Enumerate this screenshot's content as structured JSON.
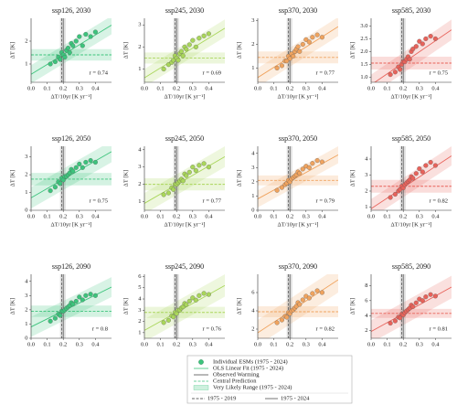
{
  "chart_data": [
    {
      "type": "scatter",
      "title": "ssp126, 2030",
      "xlabel": "ΔT/10yr  [K yr⁻¹]",
      "ylabel": "ΔT [K]",
      "annotation": "r = 0.74",
      "color": "#3cc47c",
      "x": [
        0.12,
        0.15,
        0.17,
        0.18,
        0.19,
        0.2,
        0.21,
        0.22,
        0.23,
        0.24,
        0.25,
        0.26,
        0.28,
        0.3,
        0.32,
        0.34,
        0.37,
        0.4
      ],
      "y": [
        1.0,
        1.1,
        1.3,
        1.2,
        1.5,
        1.4,
        1.3,
        1.6,
        1.7,
        1.5,
        1.9,
        1.8,
        2.0,
        2.2,
        1.8,
        2.3,
        2.2,
        2.4
      ],
      "fit": [
        0.55,
        2.7
      ],
      "fit_lower": [
        0.15,
        2.3
      ],
      "fit_upper": [
        0.95,
        3.1
      ],
      "central": 1.4,
      "range": [
        1.15,
        1.65
      ],
      "observed": [
        0.19,
        0.2
      ],
      "observed_range": [
        0.18,
        0.215
      ],
      "xlim": [
        0,
        0.5
      ],
      "xticks": [
        {
          "value": 0,
          "label": "0.0"
        },
        0.1,
        0.2,
        0.3,
        0.4
      ],
      "ylim": [
        0.2,
        3
      ],
      "yticks": [
        1,
        2
      ]
    },
    {
      "type": "scatter",
      "title": "ssp245, 2030",
      "xlabel": "ΔT/10yr  [K yr⁻¹]",
      "ylabel": "ΔT [K]",
      "annotation": "r = 0.69",
      "color": "#a9d65a",
      "x": [
        0.12,
        0.15,
        0.17,
        0.18,
        0.19,
        0.2,
        0.21,
        0.22,
        0.23,
        0.24,
        0.25,
        0.26,
        0.28,
        0.3,
        0.32,
        0.34,
        0.37,
        0.4
      ],
      "y": [
        1.0,
        1.2,
        1.3,
        1.4,
        1.6,
        1.5,
        1.4,
        1.7,
        1.8,
        1.6,
        2.0,
        1.9,
        2.1,
        2.3,
        2.0,
        2.4,
        2.5,
        2.6
      ],
      "fit": [
        0.6,
        2.85
      ],
      "fit_lower": [
        0.2,
        2.45
      ],
      "fit_upper": [
        1.0,
        3.25
      ],
      "central": 1.5,
      "range": [
        1.25,
        1.75
      ],
      "observed": [
        0.19,
        0.2
      ],
      "observed_range": [
        0.18,
        0.215
      ],
      "xlim": [
        0,
        0.5
      ],
      "xticks": [
        {
          "value": 0,
          "label": "0.0"
        },
        0.1,
        0.2,
        0.3,
        0.4
      ],
      "ylim": [
        0.4,
        3.3
      ],
      "yticks": [
        1,
        2,
        3
      ]
    },
    {
      "type": "scatter",
      "title": "ssp370, 2030",
      "xlabel": "ΔT/10yr  [K yr⁻¹]",
      "ylabel": "ΔT [K]",
      "annotation": "r = 0.77",
      "color": "#f0a35e",
      "x": [
        0.12,
        0.15,
        0.17,
        0.18,
        0.19,
        0.2,
        0.21,
        0.22,
        0.23,
        0.24,
        0.25,
        0.26,
        0.28,
        0.3,
        0.32,
        0.34,
        0.37,
        0.4
      ],
      "y": [
        1.0,
        1.1,
        1.3,
        1.3,
        1.5,
        1.4,
        1.6,
        1.5,
        1.7,
        1.8,
        1.9,
        1.7,
        2.0,
        2.2,
        2.1,
        2.3,
        2.4,
        2.3
      ],
      "fit": [
        0.6,
        2.75
      ],
      "fit_lower": [
        0.2,
        2.35
      ],
      "fit_upper": [
        1.0,
        3.15
      ],
      "central": 1.45,
      "range": [
        1.2,
        1.7
      ],
      "observed": [
        0.19,
        0.2
      ],
      "observed_range": [
        0.18,
        0.215
      ],
      "xlim": [
        0,
        0.5
      ],
      "xticks": [
        {
          "value": 0,
          "label": "0.0"
        },
        0.1,
        0.2,
        0.3,
        0.4
      ],
      "ylim": [
        0.4,
        3.1
      ],
      "yticks": [
        1,
        2,
        3
      ]
    },
    {
      "type": "scatter",
      "title": "ssp585, 2030",
      "xlabel": "ΔT/10yr  [K yr⁻¹]",
      "ylabel": "ΔT [K]",
      "annotation": "r = 0.75",
      "color": "#e8625a",
      "x": [
        0.12,
        0.15,
        0.17,
        0.18,
        0.19,
        0.2,
        0.21,
        0.22,
        0.23,
        0.24,
        0.25,
        0.26,
        0.28,
        0.3,
        0.32,
        0.34,
        0.37,
        0.4
      ],
      "y": [
        1.1,
        1.2,
        1.4,
        1.3,
        1.5,
        1.6,
        1.6,
        1.7,
        1.8,
        1.7,
        2.0,
        2.1,
        2.2,
        2.4,
        2.3,
        2.5,
        2.6,
        2.5
      ],
      "fit": [
        0.7,
        2.85
      ],
      "fit_lower": [
        0.3,
        2.45
      ],
      "fit_upper": [
        1.1,
        3.25
      ],
      "central": 1.55,
      "range": [
        1.3,
        1.8
      ],
      "observed": [
        0.19,
        0.2
      ],
      "observed_range": [
        0.18,
        0.215
      ],
      "xlim": [
        0,
        0.5
      ],
      "xticks": [
        {
          "value": 0,
          "label": "0.0"
        },
        0.1,
        0.2,
        0.3,
        0.4
      ],
      "ylim": [
        0.8,
        3.3
      ],
      "yticks": [
        {
          "value": 1,
          "label": "1.0"
        },
        1.5,
        {
          "value": 2,
          "label": "2.0"
        },
        2.5,
        {
          "value": 3,
          "label": "3.0"
        }
      ]
    },
    {
      "type": "scatter",
      "title": "ssp126, 2050",
      "xlabel": "ΔT/10yr  [K yr⁻¹]",
      "ylabel": "ΔT [K]",
      "annotation": "r = 0.75",
      "color": "#3cc47c",
      "x": [
        0.12,
        0.15,
        0.17,
        0.18,
        0.19,
        0.2,
        0.21,
        0.22,
        0.23,
        0.24,
        0.25,
        0.26,
        0.28,
        0.3,
        0.32,
        0.34,
        0.37,
        0.4
      ],
      "y": [
        1.1,
        1.3,
        1.6,
        1.5,
        1.8,
        1.7,
        1.9,
        1.9,
        2.0,
        2.1,
        2.3,
        2.2,
        2.4,
        2.6,
        2.4,
        2.7,
        2.8,
        2.7
      ],
      "fit": [
        0.7,
        3.3
      ],
      "fit_lower": [
        0.1,
        2.7
      ],
      "fit_upper": [
        1.3,
        3.9
      ],
      "central": 1.75,
      "range": [
        1.4,
        2.1
      ],
      "observed": [
        0.19,
        0.2
      ],
      "observed_range": [
        0.18,
        0.215
      ],
      "xlim": [
        0,
        0.5
      ],
      "xticks": [
        {
          "value": 0,
          "label": "0.0"
        },
        0.1,
        0.2,
        0.3,
        0.4
      ],
      "ylim": [
        0,
        3.6
      ],
      "yticks": [
        0,
        1,
        2,
        3
      ]
    },
    {
      "type": "scatter",
      "title": "ssp245, 2050",
      "xlabel": "ΔT/10yr  [K yr⁻¹]",
      "ylabel": "ΔT [K]",
      "annotation": "r = 0.77",
      "color": "#a9d65a",
      "x": [
        0.12,
        0.15,
        0.17,
        0.18,
        0.19,
        0.2,
        0.21,
        0.22,
        0.23,
        0.24,
        0.25,
        0.26,
        0.28,
        0.3,
        0.32,
        0.34,
        0.37,
        0.4
      ],
      "y": [
        1.4,
        1.5,
        1.8,
        1.7,
        2.0,
        2.0,
        2.1,
        2.2,
        2.3,
        2.2,
        2.6,
        2.5,
        2.7,
        3.0,
        2.8,
        3.1,
        3.2,
        3.0
      ],
      "fit": [
        0.9,
        3.6
      ],
      "fit_lower": [
        0.3,
        3.0
      ],
      "fit_upper": [
        1.5,
        4.2
      ],
      "central": 2.0,
      "range": [
        1.65,
        2.35
      ],
      "observed": [
        0.19,
        0.2
      ],
      "observed_range": [
        0.18,
        0.215
      ],
      "xlim": [
        0,
        0.5
      ],
      "xticks": [
        {
          "value": 0,
          "label": "0.0"
        },
        0.1,
        0.2,
        0.3,
        0.4
      ],
      "ylim": [
        0.5,
        4.2
      ],
      "yticks": [
        1,
        2,
        3,
        4
      ]
    },
    {
      "type": "scatter",
      "title": "ssp370, 2050",
      "xlabel": "ΔT/10yr  [K yr⁻¹]",
      "ylabel": "ΔT [K]",
      "annotation": "r = 0.79",
      "color": "#f0a35e",
      "x": [
        0.12,
        0.15,
        0.17,
        0.18,
        0.19,
        0.2,
        0.21,
        0.22,
        0.23,
        0.24,
        0.25,
        0.26,
        0.28,
        0.3,
        0.32,
        0.34,
        0.37,
        0.4
      ],
      "y": [
        1.4,
        1.6,
        1.8,
        1.9,
        2.1,
        2.0,
        2.2,
        2.3,
        2.4,
        2.5,
        2.7,
        2.6,
        2.9,
        3.1,
        3.0,
        3.3,
        3.5,
        3.4
      ],
      "fit": [
        0.8,
        3.9
      ],
      "fit_lower": [
        0.2,
        3.3
      ],
      "fit_upper": [
        1.4,
        4.5
      ],
      "central": 2.1,
      "range": [
        1.75,
        2.45
      ],
      "observed": [
        0.19,
        0.2
      ],
      "observed_range": [
        0.18,
        0.215
      ],
      "xlim": [
        0,
        0.5
      ],
      "xticks": [
        {
          "value": 0,
          "label": "0.0"
        },
        0.1,
        0.2,
        0.3,
        0.4
      ],
      "ylim": [
        0,
        4.5
      ],
      "yticks": [
        0,
        1,
        2,
        3,
        4
      ]
    },
    {
      "type": "scatter",
      "title": "ssp585, 2050",
      "xlabel": "ΔT/10yr  [K yr⁻¹]",
      "ylabel": "ΔT [K]",
      "annotation": "r = 0.82",
      "color": "#e8625a",
      "x": [
        0.12,
        0.15,
        0.17,
        0.18,
        0.19,
        0.2,
        0.21,
        0.22,
        0.23,
        0.24,
        0.25,
        0.26,
        0.28,
        0.3,
        0.32,
        0.34,
        0.37,
        0.4
      ],
      "y": [
        1.6,
        1.8,
        2.0,
        2.1,
        2.3,
        2.2,
        2.4,
        2.5,
        2.6,
        2.7,
        2.9,
        2.8,
        3.1,
        3.4,
        3.2,
        3.6,
        3.8,
        3.6
      ],
      "fit": [
        0.9,
        4.2
      ],
      "fit_lower": [
        0.3,
        3.6
      ],
      "fit_upper": [
        1.5,
        4.8
      ],
      "central": 2.3,
      "range": [
        1.9,
        2.7
      ],
      "observed": [
        0.19,
        0.2
      ],
      "observed_range": [
        0.18,
        0.215
      ],
      "xlim": [
        0,
        0.5
      ],
      "xticks": [
        {
          "value": 0,
          "label": "0.0"
        },
        0.1,
        0.2,
        0.3,
        0.4
      ],
      "ylim": [
        0.8,
        4.8
      ],
      "yticks": [
        1,
        2,
        3,
        4
      ]
    },
    {
      "type": "scatter",
      "title": "ssp126, 2090",
      "ylabel": "ΔT [K]",
      "annotation": "r = 0.8",
      "color": "#3cc47c",
      "x": [
        0.12,
        0.15,
        0.17,
        0.18,
        0.19,
        0.2,
        0.21,
        0.22,
        0.23,
        0.24,
        0.25,
        0.26,
        0.28,
        0.3,
        0.32,
        0.34,
        0.37,
        0.4
      ],
      "y": [
        1.2,
        1.4,
        1.7,
        1.6,
        1.9,
        1.9,
        2.0,
        2.1,
        2.2,
        2.3,
        2.5,
        2.4,
        2.6,
        2.9,
        2.7,
        3.0,
        3.1,
        3.0
      ],
      "fit": [
        0.8,
        3.6
      ],
      "fit_lower": [
        0.1,
        2.9
      ],
      "fit_upper": [
        1.5,
        4.3
      ],
      "central": 1.9,
      "range": [
        1.5,
        2.3
      ],
      "observed": [
        0.19,
        0.2
      ],
      "observed_range": [
        0.18,
        0.215
      ],
      "xlim": [
        0,
        0.5
      ],
      "xticks": [
        {
          "value": 0,
          "label": "0.0"
        },
        0.1,
        0.2,
        0.3,
        0.4
      ],
      "ylim": [
        0,
        4.5
      ],
      "yticks": [
        0,
        1,
        2,
        3,
        4
      ]
    },
    {
      "type": "scatter",
      "title": "ssp245, 2090",
      "ylabel": "ΔT [K]",
      "annotation": "r = 0.76",
      "color": "#a9d65a",
      "x": [
        0.12,
        0.15,
        0.17,
        0.18,
        0.19,
        0.2,
        0.21,
        0.22,
        0.23,
        0.24,
        0.25,
        0.26,
        0.28,
        0.3,
        0.32,
        0.34,
        0.37,
        0.4
      ],
      "y": [
        1.9,
        2.1,
        2.5,
        2.4,
        2.8,
        2.7,
        3.0,
        3.0,
        3.2,
        3.3,
        3.6,
        3.5,
        3.8,
        4.1,
        3.9,
        4.3,
        4.5,
        4.4
      ],
      "fit": [
        1.2,
        5.2
      ],
      "fit_lower": [
        0.2,
        4.2
      ],
      "fit_upper": [
        2.2,
        6.2
      ],
      "central": 2.8,
      "range": [
        2.3,
        3.3
      ],
      "observed": [
        0.19,
        0.2
      ],
      "observed_range": [
        0.18,
        0.215
      ],
      "xlim": [
        0,
        0.5
      ],
      "xticks": [
        {
          "value": 0,
          "label": "0.0"
        },
        0.1,
        0.2,
        0.3,
        0.4
      ],
      "ylim": [
        0.5,
        6.2
      ],
      "yticks": [
        1,
        2,
        3,
        4,
        5,
        6
      ]
    },
    {
      "type": "scatter",
      "title": "ssp370, 2090",
      "ylabel": "ΔT [K]",
      "annotation": "r = 0.82",
      "color": "#f0a35e",
      "x": [
        0.12,
        0.15,
        0.17,
        0.18,
        0.19,
        0.2,
        0.21,
        0.22,
        0.23,
        0.24,
        0.25,
        0.26,
        0.28,
        0.3,
        0.32,
        0.34,
        0.37,
        0.4
      ],
      "y": [
        2.7,
        3.0,
        3.4,
        3.3,
        3.8,
        3.7,
        4.0,
        4.1,
        4.3,
        4.5,
        4.9,
        4.7,
        5.2,
        5.6,
        5.4,
        5.9,
        6.2,
        6.0
      ],
      "fit": [
        1.6,
        7.4
      ],
      "fit_lower": [
        0.2,
        6.0
      ],
      "fit_upper": [
        3.0,
        8.8
      ],
      "central": 3.9,
      "range": [
        3.3,
        4.5
      ],
      "observed": [
        0.19,
        0.2
      ],
      "observed_range": [
        0.18,
        0.215
      ],
      "xlim": [
        0,
        0.5
      ],
      "xticks": [
        {
          "value": 0,
          "label": "0.0"
        },
        0.1,
        0.2,
        0.3,
        0.4
      ],
      "ylim": [
        1,
        8
      ],
      "yticks": [
        2,
        4,
        6
      ]
    },
    {
      "type": "scatter",
      "title": "ssp585, 2090",
      "ylabel": "ΔT [K]",
      "annotation": "r = 0.81",
      "color": "#e8625a",
      "x": [
        0.12,
        0.15,
        0.17,
        0.18,
        0.19,
        0.2,
        0.21,
        0.22,
        0.23,
        0.24,
        0.25,
        0.26,
        0.28,
        0.3,
        0.32,
        0.34,
        0.37,
        0.4
      ],
      "y": [
        3.0,
        3.3,
        3.8,
        3.7,
        4.2,
        4.1,
        4.4,
        4.6,
        4.8,
        5.0,
        5.4,
        5.2,
        5.7,
        6.2,
        6.0,
        6.5,
        6.8,
        6.6
      ],
      "fit": [
        1.9,
        7.8
      ],
      "fit_lower": [
        0.4,
        6.3
      ],
      "fit_upper": [
        3.4,
        9.3
      ],
      "central": 4.3,
      "range": [
        3.7,
        4.9
      ],
      "observed": [
        0.19,
        0.2
      ],
      "observed_range": [
        0.18,
        0.215
      ],
      "xlim": [
        0,
        0.5
      ],
      "xticks": [
        {
          "value": 0,
          "label": "0.0"
        },
        0.1,
        0.2,
        0.3,
        0.4
      ],
      "ylim": [
        1,
        9.5
      ],
      "yticks": [
        2,
        4,
        6,
        8
      ]
    }
  ],
  "legend": {
    "items": [
      "Individual ESMs (1975 - 2024)",
      "OLS Linear Fit (1975 - 2024)",
      "Observed Warming",
      "Central Prediction",
      "Very Likely Range (1975 - 2024)"
    ],
    "periods": [
      "1975 - 2019",
      "1975 - 2024"
    ]
  }
}
